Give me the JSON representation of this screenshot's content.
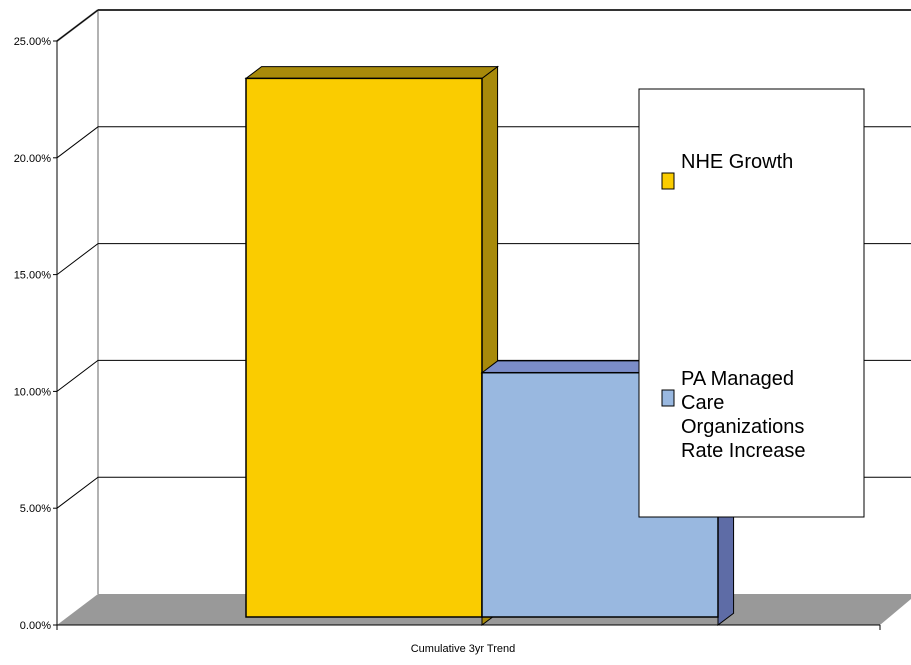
{
  "chart_data": {
    "type": "bar",
    "style": "3d-clustered-column",
    "categories": [
      "Cumulative 3yr Trend"
    ],
    "series": [
      {
        "name": "NHE Growth",
        "values": [
          23.4
        ],
        "color": "#FACC00"
      },
      {
        "name": "PA Managed Care Organizations Rate Increase",
        "values": [
          10.8
        ],
        "color": "#99B8E0"
      }
    ],
    "y_ticks": [
      "0.00%",
      "5.00%",
      "10.00%",
      "15.00%",
      "20.00%",
      "25.00%"
    ],
    "ylim": [
      0,
      25
    ],
    "grid": true,
    "legend_position": "right",
    "title": "",
    "xlabel": "",
    "ylabel": ""
  },
  "colors": {
    "floor": "#999999",
    "wall_line": "#666666",
    "gridline": "#000000",
    "series1_side": "#A88A0A",
    "series2_side": "#5E6CA6",
    "series2_top": "#7B8DC8"
  }
}
